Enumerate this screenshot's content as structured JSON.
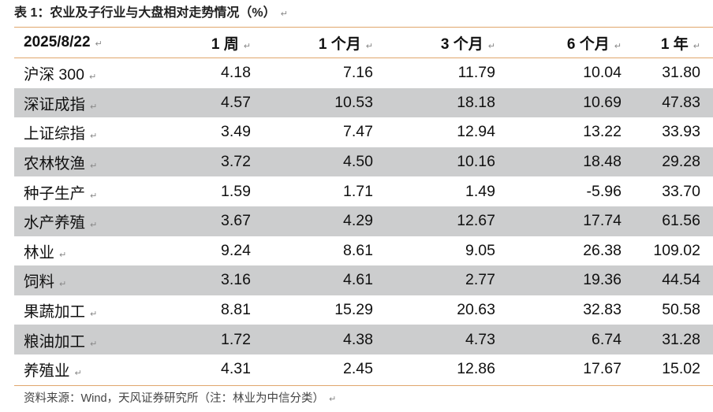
{
  "title": "表 1：农业及子行业与大盘相对走势情况（%）",
  "paragraph_mark": "↵",
  "header": [
    "2025/8/22",
    "1 周",
    "1 个月",
    "3 个月",
    "6 个月",
    "1 年"
  ],
  "rows": [
    [
      "沪深 300",
      "4.18",
      "7.16",
      "11.79",
      "10.04",
      "31.80"
    ],
    [
      "深证成指",
      "4.57",
      "10.53",
      "18.18",
      "10.69",
      "47.83"
    ],
    [
      "上证综指",
      "3.49",
      "7.47",
      "12.94",
      "13.22",
      "33.93"
    ],
    [
      "农林牧渔",
      "3.72",
      "4.50",
      "10.16",
      "18.48",
      "29.28"
    ],
    [
      "种子生产",
      "1.59",
      "1.71",
      "1.49",
      "-5.96",
      "33.70"
    ],
    [
      "水产养殖",
      "3.67",
      "4.29",
      "12.67",
      "17.74",
      "61.56"
    ],
    [
      "林业",
      "9.24",
      "8.61",
      "9.05",
      "26.38",
      "109.02"
    ],
    [
      "饲料",
      "3.16",
      "4.61",
      "2.77",
      "19.36",
      "44.54"
    ],
    [
      "果蔬加工",
      "8.81",
      "15.29",
      "20.63",
      "32.83",
      "50.58"
    ],
    [
      "粮油加工",
      "1.72",
      "4.38",
      "4.73",
      "6.74",
      "31.28"
    ],
    [
      "养殖业",
      "4.31",
      "2.45",
      "12.86",
      "17.67",
      "15.02"
    ]
  ],
  "source": "资料来源：Wind，天风证券研究所（注：林业为中信分类）",
  "colors": {
    "border": "#e0a66c",
    "shade": "#cccdce"
  }
}
